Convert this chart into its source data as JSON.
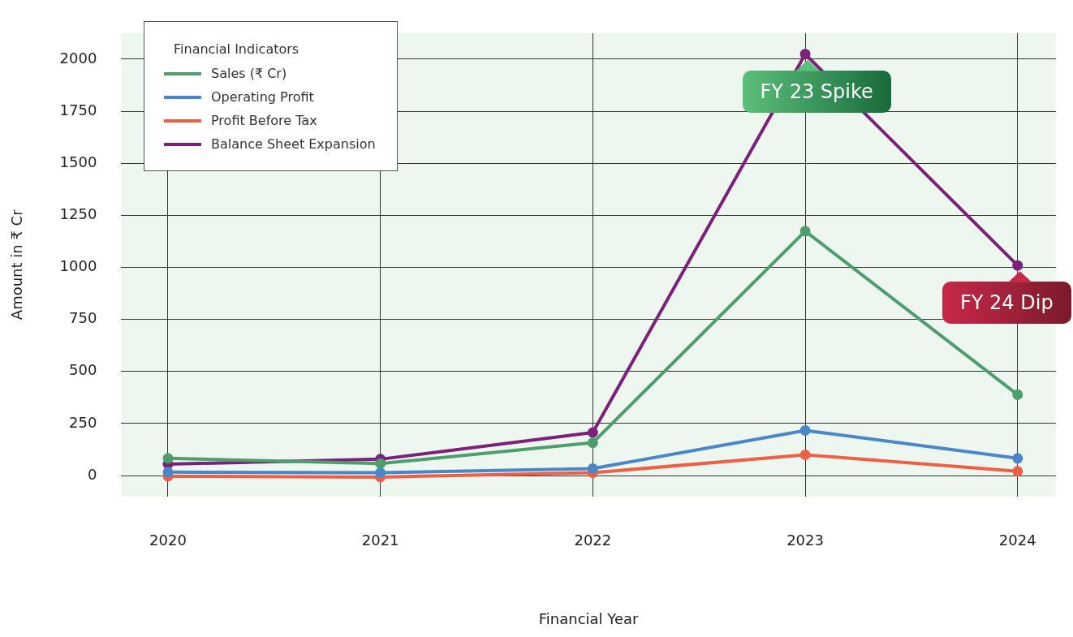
{
  "chart_data": {
    "type": "line",
    "xlabel": "Financial Year",
    "ylabel": "Amount in ₹ Cr",
    "legend_title": "Financial Indicators",
    "x": [
      2020,
      2021,
      2022,
      2023,
      2024
    ],
    "xlim": [
      2019.78,
      2024.18
    ],
    "xticks": [
      2020,
      2021,
      2022,
      2023,
      2024
    ],
    "ylim": [
      -100,
      2125
    ],
    "yticks": [
      0,
      250,
      500,
      750,
      1000,
      1250,
      1500,
      1750,
      2000
    ],
    "series": [
      {
        "name": "Sales (₹ Cr)",
        "color": "#4e9d6c",
        "values": [
          83,
          58,
          158,
          1174,
          389
        ]
      },
      {
        "name": "Operating Profit",
        "color": "#4a86c8",
        "values": [
          17,
          14,
          34,
          217,
          83
        ]
      },
      {
        "name": "Profit Before Tax",
        "color": "#ef5f45",
        "values": [
          -3,
          -7,
          14,
          100,
          21
        ]
      },
      {
        "name": "Balance Sheet Expansion",
        "color": "#7b2179",
        "values": [
          55,
          79,
          207,
          2024,
          1009
        ]
      }
    ],
    "annotations": [
      {
        "text": "FY 23 Spike",
        "x": 2023,
        "y": 2024
      },
      {
        "text": "FY 24 Dip",
        "x": 2024,
        "y": 1009
      }
    ],
    "grid": true,
    "legend": "top left",
    "marker": "circle",
    "line_style": "solid"
  }
}
